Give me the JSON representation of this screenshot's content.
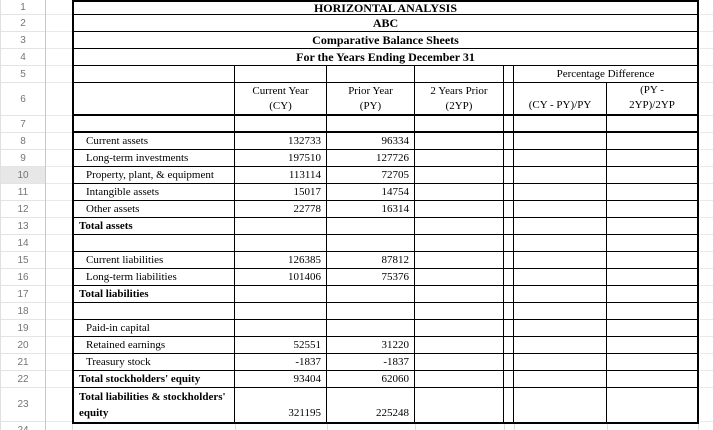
{
  "sheet": {
    "row_numbers": [
      "1",
      "2",
      "3",
      "4",
      "5",
      "6",
      "7",
      "8",
      "9",
      "10",
      "11",
      "12",
      "13",
      "14",
      "15",
      "16",
      "17",
      "18",
      "19",
      "20",
      "21",
      "22",
      "23",
      "24"
    ],
    "highlighted_row": "10"
  },
  "table": {
    "titles": [
      "HORIZONTAL ANALYSIS",
      "ABC",
      "Comparative Balance Sheets",
      "For the Years Ending December 31"
    ],
    "header": {
      "percentage_difference": "Percentage Difference",
      "cy": {
        "line1": "Current Year",
        "line2": "(CY)"
      },
      "py": {
        "line1": "Prior Year",
        "line2": "(PY)"
      },
      "yp2": {
        "line1": "2 Years Prior",
        "line2": "(2YP)"
      },
      "pct1": "(CY - PY)/PY",
      "pct2": {
        "line1": "(PY -",
        "line2": "2YP)/2YP"
      }
    },
    "rows": [
      {
        "label": "",
        "cy": "",
        "py": "",
        "bold": false,
        "indent": false,
        "tall": false
      },
      {
        "label": "Current assets",
        "cy": "132733",
        "py": "96334",
        "bold": false,
        "indent": true,
        "tall": false
      },
      {
        "label": "Long-term investments",
        "cy": "197510",
        "py": "127726",
        "bold": false,
        "indent": true,
        "tall": false
      },
      {
        "label": "Property, plant, & equipment",
        "cy": "113114",
        "py": "72705",
        "bold": false,
        "indent": true,
        "tall": false
      },
      {
        "label": "Intangible assets",
        "cy": "15017",
        "py": "14754",
        "bold": false,
        "indent": true,
        "tall": false
      },
      {
        "label": "Other assets",
        "cy": "22778",
        "py": "16314",
        "bold": false,
        "indent": true,
        "tall": false
      },
      {
        "label": "Total assets",
        "cy": "",
        "py": "",
        "bold": true,
        "indent": false,
        "tall": false
      },
      {
        "label": "",
        "cy": "",
        "py": "",
        "bold": false,
        "indent": false,
        "tall": false
      },
      {
        "label": "Current liabilities",
        "cy": "126385",
        "py": "87812",
        "bold": false,
        "indent": true,
        "tall": false
      },
      {
        "label": "Long-term liabilities",
        "cy": "101406",
        "py": "75376",
        "bold": false,
        "indent": true,
        "tall": false
      },
      {
        "label": "Total liabilities",
        "cy": "",
        "py": "",
        "bold": true,
        "indent": false,
        "tall": false
      },
      {
        "label": "",
        "cy": "",
        "py": "",
        "bold": false,
        "indent": false,
        "tall": false
      },
      {
        "label": "Paid-in capital",
        "cy": "",
        "py": "",
        "bold": false,
        "indent": true,
        "tall": false
      },
      {
        "label": "Retained earnings",
        "cy": "52551",
        "py": "31220",
        "bold": false,
        "indent": true,
        "tall": false
      },
      {
        "label": "Treasury stock",
        "cy": "-1837",
        "py": "-1837",
        "bold": false,
        "indent": true,
        "tall": false
      },
      {
        "label": "Total stockholders' equity",
        "cy": "93404",
        "py": "62060",
        "bold": true,
        "indent": false,
        "tall": false
      },
      {
        "label": "Total liabilities & stockholders' equity",
        "cy": "321195",
        "py": "225248",
        "bold": true,
        "indent": false,
        "tall": true
      }
    ]
  }
}
